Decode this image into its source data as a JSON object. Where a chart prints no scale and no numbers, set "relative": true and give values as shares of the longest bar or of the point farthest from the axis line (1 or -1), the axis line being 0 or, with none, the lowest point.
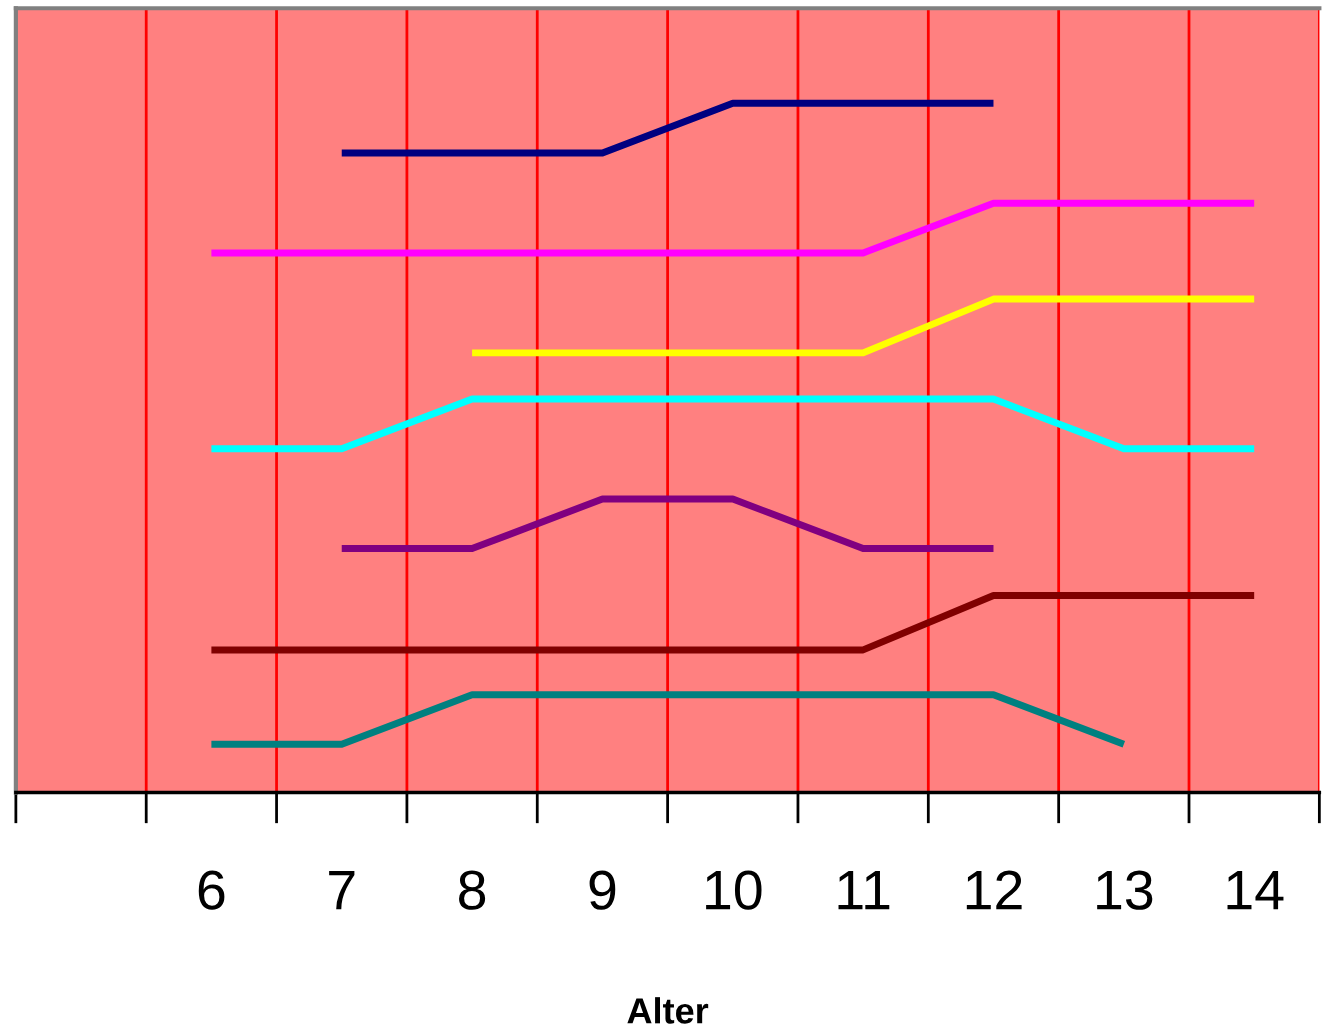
{
  "chart_data": {
    "type": "line",
    "xlabel": "Alter",
    "relative": true,
    "grid": "x",
    "marker": "none",
    "line_style": "solid",
    "categories": [
      null,
      "6",
      "7",
      "8",
      "9",
      "10",
      "11",
      "12",
      "13",
      "14"
    ],
    "series": [
      {
        "color": "#000080",
        "values": [
          null,
          null,
          0.928,
          0.928,
          0.928,
          1,
          1,
          1,
          null,
          null
        ]
      },
      {
        "color": "#ff00ff",
        "values": [
          null,
          0.783,
          0.783,
          0.783,
          0.783,
          0.783,
          0.783,
          0.855,
          0.855,
          0.855
        ]
      },
      {
        "color": "#ffff00",
        "values": [
          null,
          null,
          null,
          0.638,
          0.638,
          0.638,
          0.638,
          0.716,
          0.716,
          0.716
        ]
      },
      {
        "color": "#00ffff",
        "values": [
          null,
          0.499,
          0.499,
          0.571,
          0.571,
          0.571,
          0.571,
          0.571,
          0.499,
          0.499
        ]
      },
      {
        "color": "#800080",
        "values": [
          null,
          null,
          0.354,
          0.354,
          0.426,
          0.426,
          0.354,
          0.354,
          null,
          null
        ]
      },
      {
        "color": "#800000",
        "values": [
          null,
          0.207,
          0.207,
          0.207,
          0.207,
          0.207,
          0.207,
          0.286,
          0.286,
          0.286
        ]
      },
      {
        "color": "#008080",
        "values": [
          null,
          0.07,
          0.07,
          0.142,
          0.142,
          0.142,
          0.142,
          0.142,
          0.07,
          null
        ]
      }
    ]
  }
}
